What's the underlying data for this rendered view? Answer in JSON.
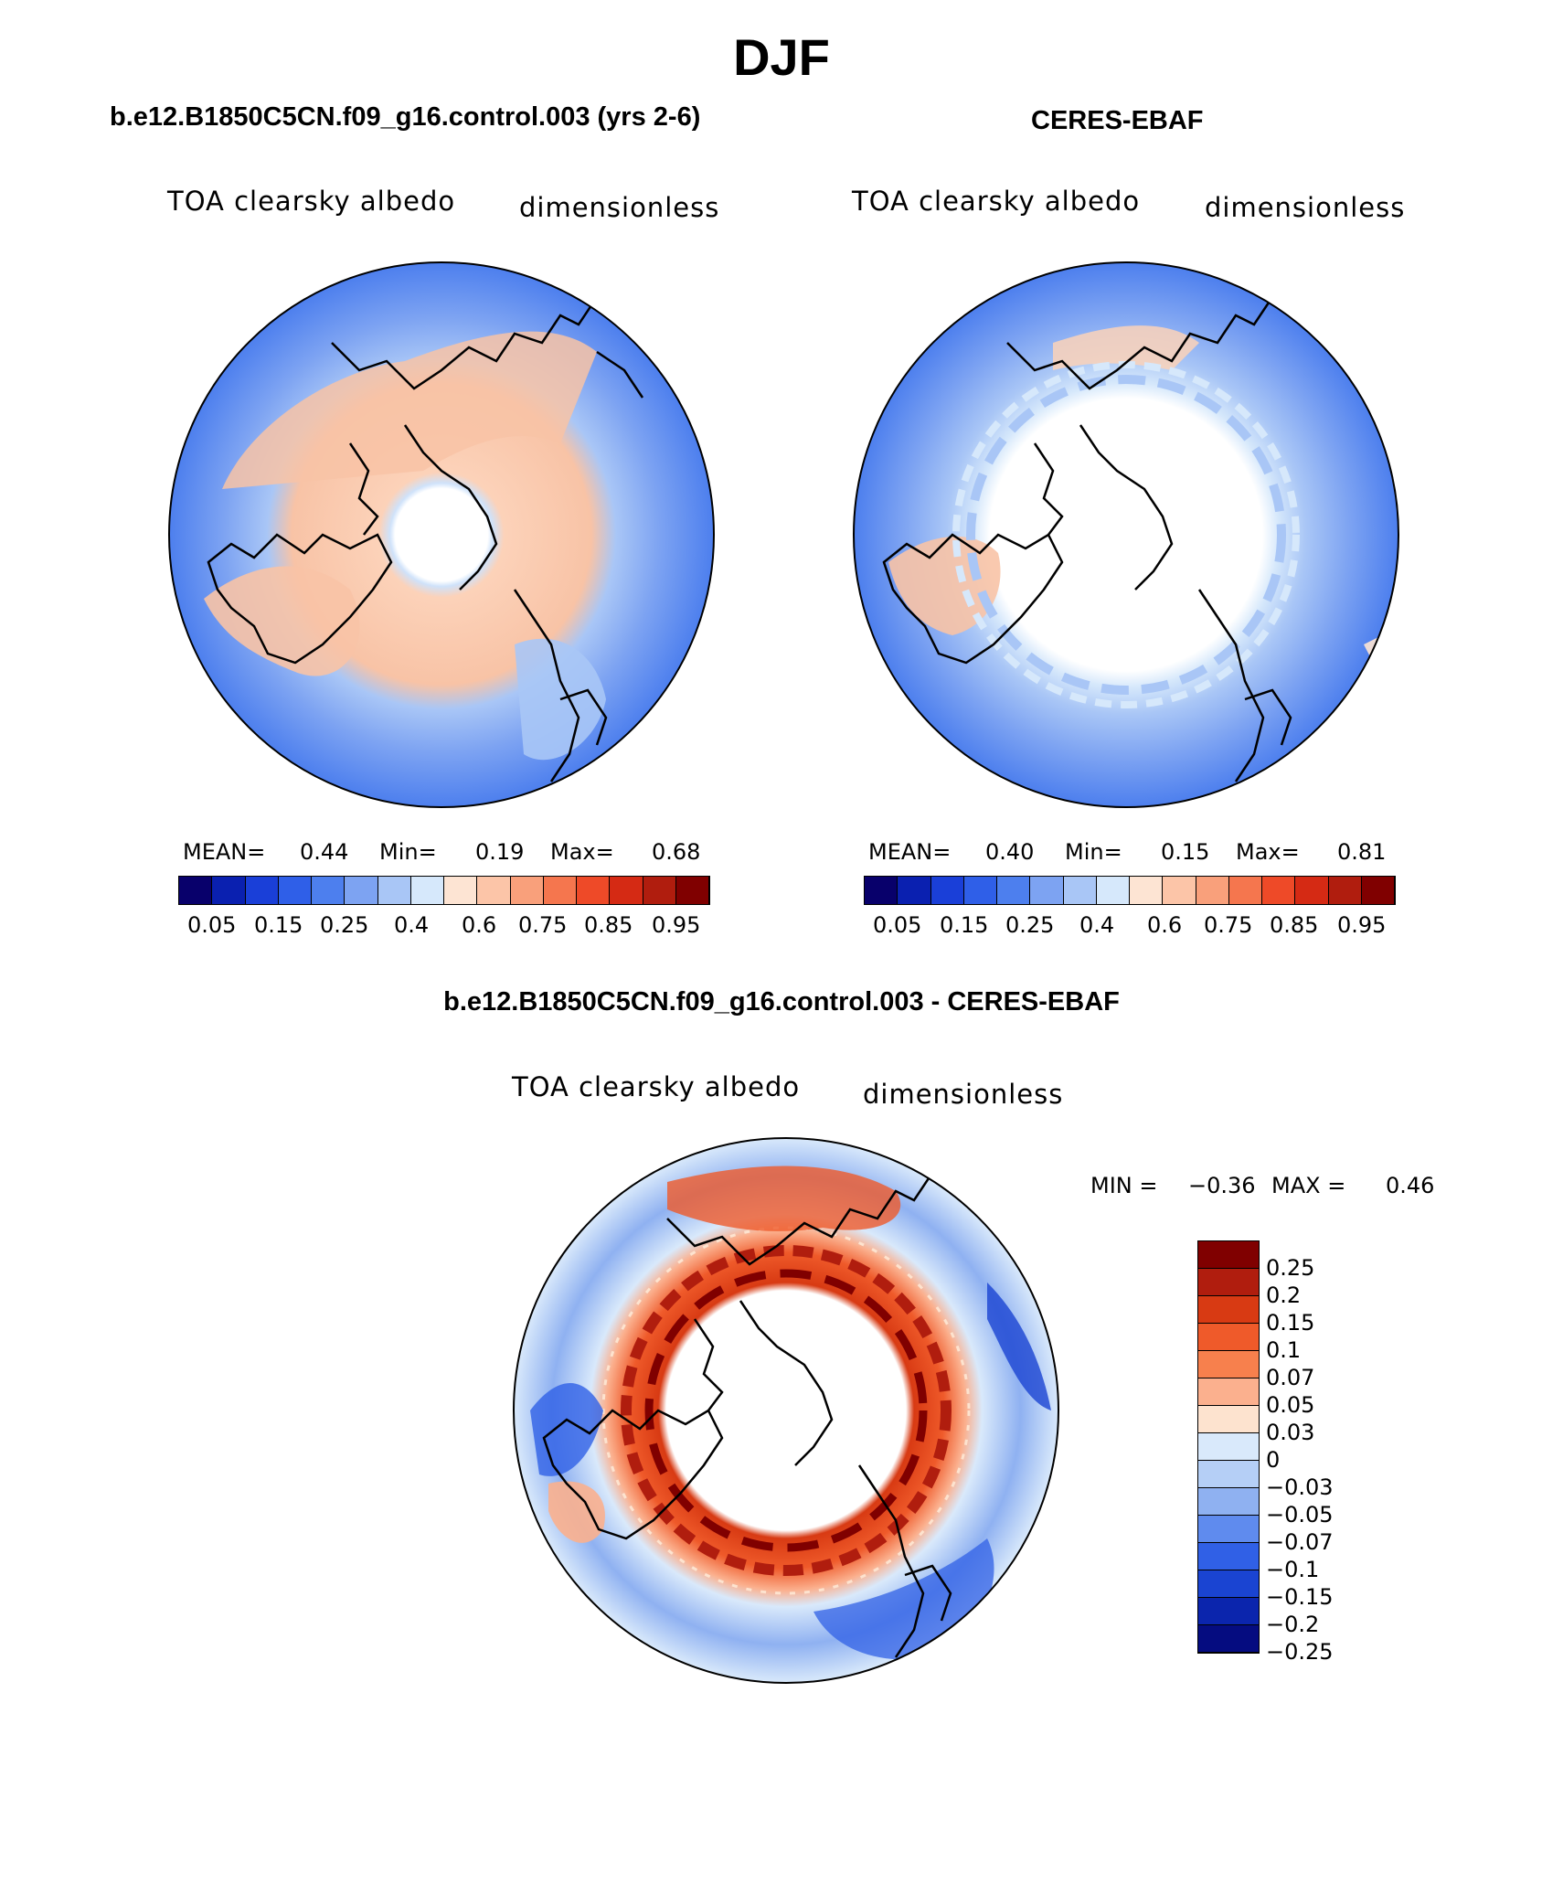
{
  "page": {
    "title": "DJF"
  },
  "panels": [
    {
      "heading": "b.e12.B1850C5CN.f09_g16.control.003 (yrs 2-6)",
      "variable": "TOA clearsky albedo",
      "units": "dimensionless",
      "stats": {
        "mean_label": "MEAN=",
        "mean": "0.44",
        "min_label": "Min=",
        "min": "0.19",
        "max_label": "Max=",
        "max": "0.68"
      },
      "colorbar_labels": [
        "0.05",
        "0.15",
        "0.25",
        "0.4",
        "0.6",
        "0.75",
        "0.85",
        "0.95"
      ]
    },
    {
      "heading": "CERES-EBAF",
      "variable": "TOA clearsky albedo",
      "units": "dimensionless",
      "stats": {
        "mean_label": "MEAN=",
        "mean": "0.40",
        "min_label": "Min=",
        "min": "0.15",
        "max_label": "Max=",
        "max": "0.81"
      },
      "colorbar_labels": [
        "0.05",
        "0.15",
        "0.25",
        "0.4",
        "0.6",
        "0.75",
        "0.85",
        "0.95"
      ]
    }
  ],
  "difference": {
    "heading": "b.e12.B1850C5CN.f09_g16.control.003 - CERES-EBAF",
    "variable": "TOA clearsky albedo",
    "units": "dimensionless",
    "minmax": {
      "min_label": "MIN =",
      "min": "−0.36",
      "max_label": "MAX =",
      "max": "0.46"
    },
    "colorbar_labels": [
      "0.25",
      "0.2",
      "0.15",
      "0.1",
      "0.07",
      "0.05",
      "0.03",
      "0",
      "−0.03",
      "−0.05",
      "−0.07",
      "−0.1",
      "−0.15",
      "−0.2",
      "−0.25"
    ]
  },
  "colors": {
    "albedo_scale": [
      "#08006b",
      "#0a20b0",
      "#1a3fd8",
      "#2f5fe8",
      "#4d7fee",
      "#7da3f2",
      "#a9c6f6",
      "#d6e8fb",
      "#fde4d3",
      "#fcc5a8",
      "#f9a07b",
      "#f5764e",
      "#ee4a28",
      "#d52a14",
      "#b01d0e",
      "#800000"
    ],
    "diff_scale": [
      "#800000",
      "#b01d0e",
      "#d83a13",
      "#ef5a2a",
      "#f7804d",
      "#fbb08e",
      "#fde3cf",
      "#d9e9fb",
      "#b5cff6",
      "#8fb1f1",
      "#5f8bee",
      "#3060e6",
      "#1a44d2",
      "#0b25ad",
      "#050c80"
    ],
    "land_outline": "#000000",
    "ocean_low": "#4d7fee",
    "land_high": "#f8c3a6"
  }
}
